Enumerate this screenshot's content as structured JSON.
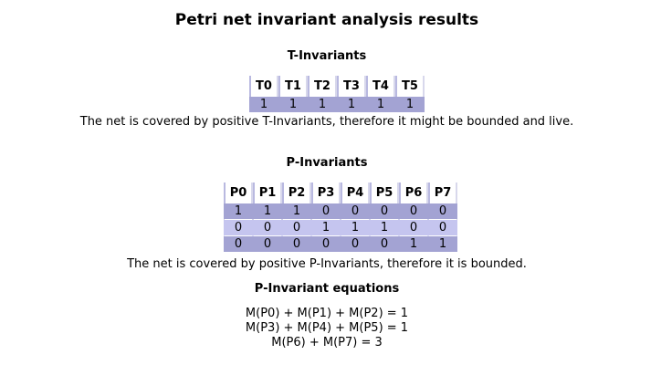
{
  "title": "Petri net invariant analysis results",
  "t_invariants": {
    "heading": "T-Invariants",
    "columns": [
      "T0",
      "T1",
      "T2",
      "T3",
      "T4",
      "T5"
    ],
    "rows": [
      [
        "1",
        "1",
        "1",
        "1",
        "1",
        "1"
      ]
    ],
    "note": "The net is covered by positive T-Invariants, therefore it might be bounded and live."
  },
  "p_invariants": {
    "heading": "P-Invariants",
    "columns": [
      "P0",
      "P1",
      "P2",
      "P3",
      "P4",
      "P5",
      "P6",
      "P7"
    ],
    "rows": [
      [
        "1",
        "1",
        "1",
        "0",
        "0",
        "0",
        "0",
        "0"
      ],
      [
        "0",
        "0",
        "0",
        "1",
        "1",
        "1",
        "0",
        "0"
      ],
      [
        "0",
        "0",
        "0",
        "0",
        "0",
        "0",
        "1",
        "1"
      ]
    ],
    "note": "The net is covered by positive P-Invariants, therefore it is bounded."
  },
  "p_equations": {
    "heading": "P-Invariant equations",
    "lines": [
      "M(P0) + M(P1) + M(P2) = 1",
      "M(P3) + M(P4) + M(P5) = 1",
      "M(P6) + M(P7) = 3"
    ]
  },
  "colors": {
    "row_dark": "#a3a3d3",
    "row_light": "#c5c5ef",
    "header_border": "#b9b9e0"
  }
}
